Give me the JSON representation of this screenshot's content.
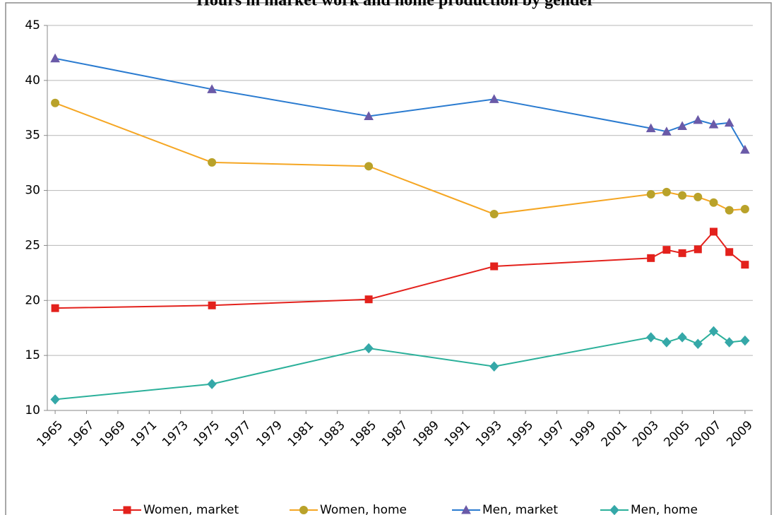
{
  "chart_data": {
    "type": "line",
    "title": "Hours in market work and home production by gender",
    "x": [
      1965,
      1975,
      1985,
      1993,
      2003,
      2004,
      2005,
      2006,
      2007,
      2008,
      2009
    ],
    "xlim": [
      1964.5,
      2009.5
    ],
    "xticks": [
      1965,
      1967,
      1969,
      1971,
      1973,
      1975,
      1977,
      1979,
      1981,
      1983,
      1985,
      1987,
      1989,
      1991,
      1993,
      1995,
      1997,
      1999,
      2001,
      2003,
      2005,
      2007,
      2009
    ],
    "ylim": [
      10,
      45
    ],
    "yticks": [
      10,
      15,
      20,
      25,
      30,
      35,
      40,
      45
    ],
    "grid": true,
    "legend": "bottom",
    "series": [
      {
        "name": "Women, market",
        "color": "#e3211c",
        "marker_color": "#e3211c",
        "marker": "square",
        "values": [
          19.3,
          19.55,
          20.1,
          23.1,
          23.85,
          24.6,
          24.3,
          24.65,
          26.25,
          24.4,
          23.25
        ]
      },
      {
        "name": "Women, home",
        "color": "#f5a623",
        "marker_color": "#b9a22a",
        "marker": "circle",
        "values": [
          37.95,
          32.55,
          32.2,
          27.85,
          29.65,
          29.85,
          29.55,
          29.4,
          28.9,
          28.2,
          28.3
        ]
      },
      {
        "name": "Men, market",
        "color": "#2a7bd0",
        "marker_color": "#6a5aa8",
        "marker": "triangle",
        "values": [
          42.0,
          39.2,
          36.75,
          38.3,
          35.65,
          35.35,
          35.85,
          36.4,
          36.0,
          36.15,
          33.7
        ]
      },
      {
        "name": "Men, home",
        "color": "#2bb09a",
        "marker_color": "#35a8a8",
        "marker": "diamond",
        "values": [
          11.0,
          12.4,
          15.65,
          14.0,
          16.65,
          16.2,
          16.65,
          16.05,
          17.2,
          16.2,
          16.35
        ]
      }
    ]
  }
}
